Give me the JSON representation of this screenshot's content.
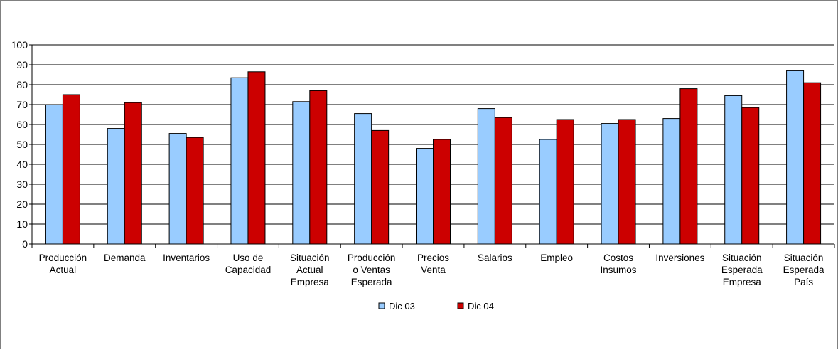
{
  "chart_data": {
    "type": "bar",
    "categories": [
      [
        "Producción",
        "Actual"
      ],
      [
        "Demanda"
      ],
      [
        "Inventarios"
      ],
      [
        "Uso de",
        "Capacidad"
      ],
      [
        "Situación",
        "Actual",
        "Empresa"
      ],
      [
        "Producción",
        "o Ventas",
        "Esperada"
      ],
      [
        "Precios",
        "Venta"
      ],
      [
        "Salarios"
      ],
      [
        "Empleo"
      ],
      [
        "Costos",
        "Insumos"
      ],
      [
        "Inversiones"
      ],
      [
        "Situación",
        "Esperada",
        "Empresa"
      ],
      [
        "Situación",
        "Esperada",
        "País"
      ]
    ],
    "series": [
      {
        "name": "Dic 03",
        "color": "#99CCFF",
        "values": [
          70,
          58,
          55.5,
          83.5,
          71.5,
          65.5,
          48,
          68,
          52.5,
          60.5,
          63,
          74.5,
          87
        ]
      },
      {
        "name": "Dic 04",
        "color": "#CC0000",
        "values": [
          75,
          71,
          53.5,
          86.5,
          77,
          57,
          52.5,
          63.5,
          62.5,
          62.5,
          78,
          68.5,
          81
        ]
      }
    ],
    "ylim": [
      0,
      100
    ],
    "yticks": [
      "0",
      "10",
      "20",
      "30",
      "40",
      "50",
      "60",
      "70",
      "80",
      "90",
      "100"
    ],
    "grid": true,
    "legend_position": "bottom",
    "title": "",
    "xlabel": "",
    "ylabel": ""
  }
}
